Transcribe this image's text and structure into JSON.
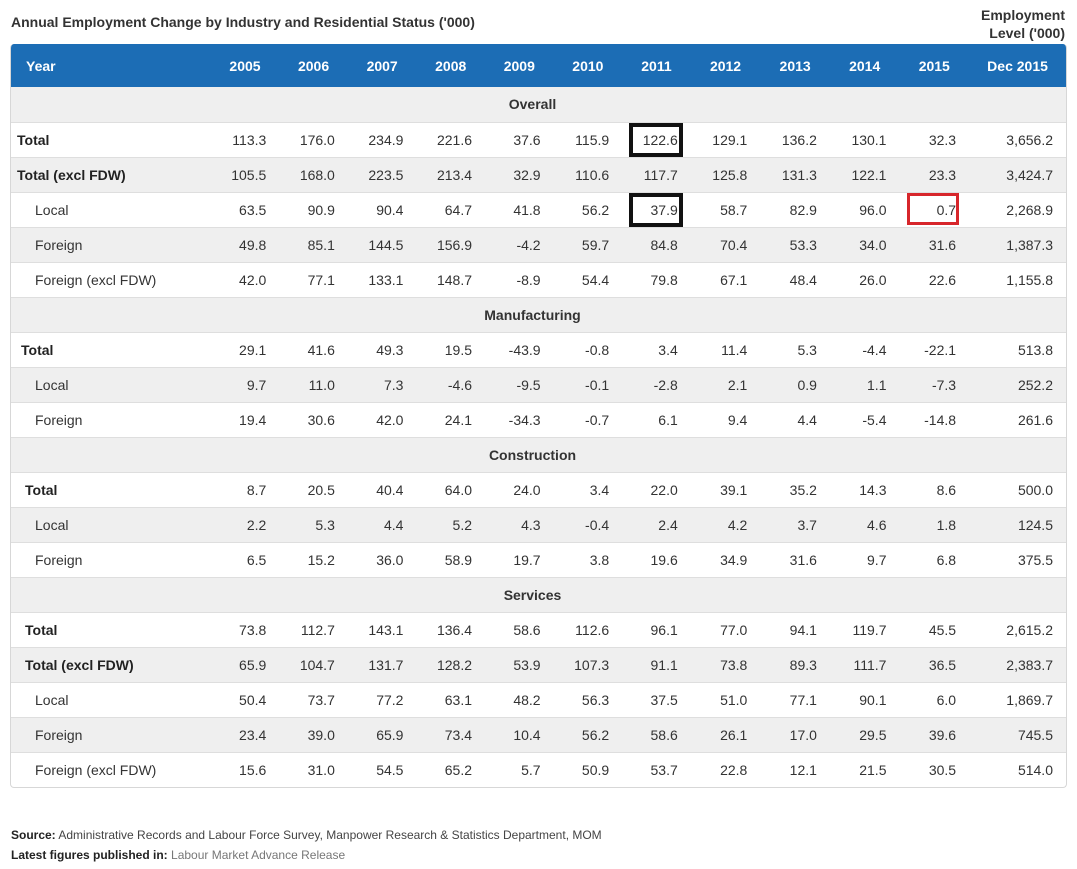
{
  "title": "Annual Employment Change by Industry and Residential Status ('000)",
  "level_header": [
    "Employment",
    "Level ('000)"
  ],
  "chart_data": {
    "type": "table",
    "columns": [
      "Year",
      "2005",
      "2006",
      "2007",
      "2008",
      "2009",
      "2010",
      "2011",
      "2012",
      "2013",
      "2014",
      "2015",
      "Dec 2015"
    ],
    "sections": [
      {
        "name": "Overall",
        "rows": [
          {
            "label": "Total",
            "values": [
              "113.3",
              "176.0",
              "234.9",
              "221.6",
              "37.6",
              "115.9",
              "122.6",
              "129.1",
              "136.2",
              "130.1",
              "32.3",
              "3,656.2"
            ]
          },
          {
            "label": "Total (excl FDW)",
            "values": [
              "105.5",
              "168.0",
              "223.5",
              "213.4",
              "32.9",
              "110.6",
              "117.7",
              "125.8",
              "131.3",
              "122.1",
              "23.3",
              "3,424.7"
            ]
          },
          {
            "label": "Local",
            "values": [
              "63.5",
              "90.9",
              "90.4",
              "64.7",
              "41.8",
              "56.2",
              "37.9",
              "58.7",
              "82.9",
              "96.0",
              "0.7",
              "2,268.9"
            ]
          },
          {
            "label": "Foreign",
            "values": [
              "49.8",
              "85.1",
              "144.5",
              "156.9",
              "-4.2",
              "59.7",
              "84.8",
              "70.4",
              "53.3",
              "34.0",
              "31.6",
              "1,387.3"
            ]
          },
          {
            "label": "Foreign (excl FDW)",
            "values": [
              "42.0",
              "77.1",
              "133.1",
              "148.7",
              "-8.9",
              "54.4",
              "79.8",
              "67.1",
              "48.4",
              "26.0",
              "22.6",
              "1,155.8"
            ]
          }
        ]
      },
      {
        "name": "Manufacturing",
        "rows": [
          {
            "label": "Total",
            "values": [
              "29.1",
              "41.6",
              "49.3",
              "19.5",
              "-43.9",
              "-0.8",
              "3.4",
              "11.4",
              "5.3",
              "-4.4",
              "-22.1",
              "513.8"
            ]
          },
          {
            "label": "Local",
            "values": [
              "9.7",
              "11.0",
              "7.3",
              "-4.6",
              "-9.5",
              "-0.1",
              "-2.8",
              "2.1",
              "0.9",
              "1.1",
              "-7.3",
              "252.2"
            ]
          },
          {
            "label": "Foreign",
            "values": [
              "19.4",
              "30.6",
              "42.0",
              "24.1",
              "-34.3",
              "-0.7",
              "6.1",
              "9.4",
              "4.4",
              "-5.4",
              "-14.8",
              "261.6"
            ]
          }
        ]
      },
      {
        "name": "Construction",
        "rows": [
          {
            "label": "Total",
            "values": [
              "8.7",
              "20.5",
              "40.4",
              "64.0",
              "24.0",
              "3.4",
              "22.0",
              "39.1",
              "35.2",
              "14.3",
              "8.6",
              "500.0"
            ]
          },
          {
            "label": "Local",
            "values": [
              "2.2",
              "5.3",
              "4.4",
              "5.2",
              "4.3",
              "-0.4",
              "2.4",
              "4.2",
              "3.7",
              "4.6",
              "1.8",
              "124.5"
            ]
          },
          {
            "label": "Foreign",
            "values": [
              "6.5",
              "15.2",
              "36.0",
              "58.9",
              "19.7",
              "3.8",
              "19.6",
              "34.9",
              "31.6",
              "9.7",
              "6.8",
              "375.5"
            ]
          }
        ]
      },
      {
        "name": "Services",
        "rows": [
          {
            "label": "Total",
            "values": [
              "73.8",
              "112.7",
              "143.1",
              "136.4",
              "58.6",
              "112.6",
              "96.1",
              "77.0",
              "94.1",
              "119.7",
              "45.5",
              "2,615.2"
            ]
          },
          {
            "label": "Total (excl FDW)",
            "values": [
              "65.9",
              "104.7",
              "131.7",
              "128.2",
              "53.9",
              "107.3",
              "91.1",
              "73.8",
              "89.3",
              "111.7",
              "36.5",
              "2,383.7"
            ]
          },
          {
            "label": "Local",
            "values": [
              "50.4",
              "73.7",
              "77.2",
              "63.1",
              "48.2",
              "56.3",
              "37.5",
              "51.0",
              "77.1",
              "90.1",
              "6.0",
              "1,869.7"
            ]
          },
          {
            "label": "Foreign",
            "values": [
              "23.4",
              "39.0",
              "65.9",
              "73.4",
              "10.4",
              "56.2",
              "58.6",
              "26.1",
              "17.0",
              "29.5",
              "39.6",
              "745.5"
            ]
          },
          {
            "label": "Foreign (excl FDW)",
            "values": [
              "15.6",
              "31.0",
              "54.5",
              "65.2",
              "5.7",
              "50.9",
              "53.7",
              "22.8",
              "12.1",
              "21.5",
              "30.5",
              "514.0"
            ]
          }
        ]
      }
    ],
    "highlights": [
      {
        "section": "Overall",
        "row": "Total",
        "column": "2011",
        "color": "#111111"
      },
      {
        "section": "Overall",
        "row": "Local",
        "column": "2011",
        "color": "#111111"
      },
      {
        "section": "Overall",
        "row": "Local",
        "column": "2015",
        "color": "#d7262b"
      }
    ]
  },
  "colors": {
    "header_bg": "#1c6db5",
    "band": "#efefef"
  },
  "footer": {
    "source_label": "Source:",
    "source_text": "Administrative Records and Labour Force Survey, Manpower Research & Statistics Department, MOM",
    "latest_label": "Latest figures published in:",
    "latest_link": "Labour Market Advance Release"
  }
}
